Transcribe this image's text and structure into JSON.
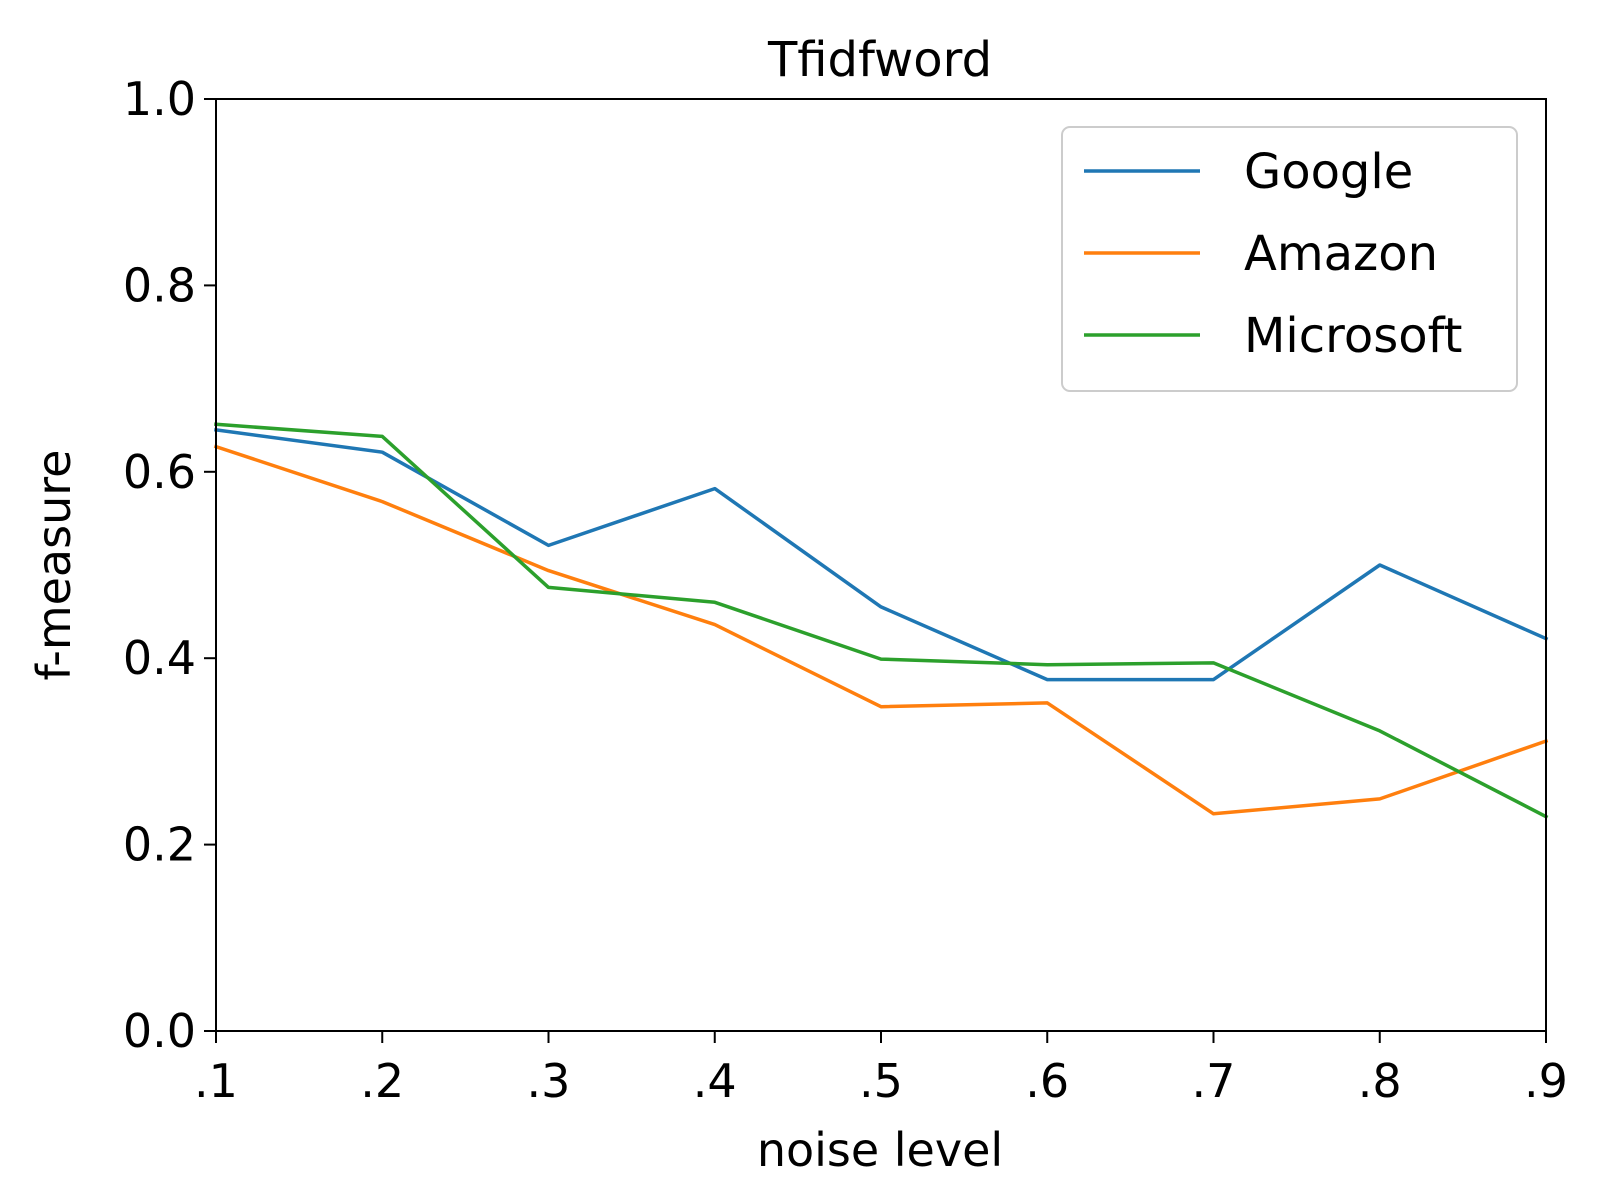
{
  "chart_data": {
    "type": "line",
    "title": "Tfidfword",
    "xlabel": "noise level",
    "ylabel": "f-measure",
    "x": [
      0.1,
      0.2,
      0.3,
      0.4,
      0.5,
      0.6,
      0.7,
      0.8,
      0.9
    ],
    "x_tick_labels": [
      ".1",
      ".2",
      ".3",
      ".4",
      ".5",
      ".6",
      ".7",
      ".8",
      ".9"
    ],
    "xlim": [
      0.1,
      0.9
    ],
    "ylim": [
      0.0,
      1.0
    ],
    "y_ticks": [
      0.0,
      0.2,
      0.4,
      0.6,
      0.8,
      1.0
    ],
    "y_tick_labels": [
      "0.0",
      "0.2",
      "0.4",
      "0.6",
      "0.8",
      "1.0"
    ],
    "grid": false,
    "legend_position": "top-right",
    "series": [
      {
        "name": "Google",
        "color": "#1f77b4",
        "values": [
          0.645,
          0.621,
          0.521,
          0.582,
          0.455,
          0.377,
          0.377,
          0.5,
          0.421
        ]
      },
      {
        "name": "Amazon",
        "color": "#ff7f0e",
        "values": [
          0.627,
          0.568,
          0.494,
          0.436,
          0.348,
          0.352,
          0.233,
          0.249,
          0.311
        ]
      },
      {
        "name": "Microsoft",
        "color": "#2ca02c",
        "values": [
          0.651,
          0.638,
          0.476,
          0.46,
          0.399,
          0.393,
          0.395,
          0.322,
          0.23
        ]
      }
    ]
  }
}
